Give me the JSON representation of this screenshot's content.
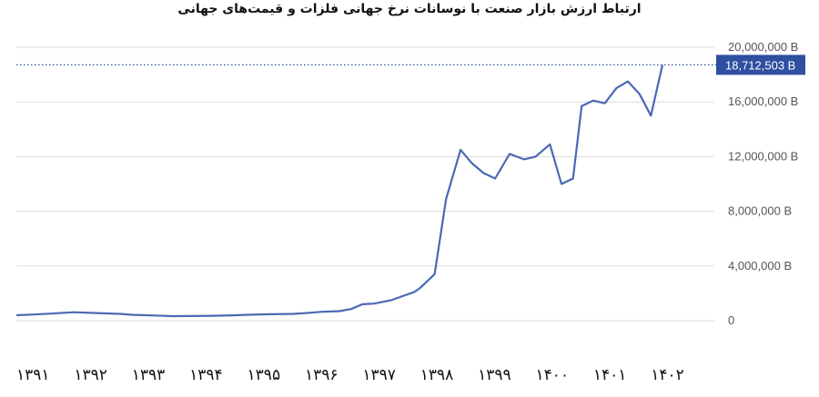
{
  "title": "ارتباط ارزش بازار صنعت با نوسانات نرخ جهانی فلزات و قیمت‌های جهانی",
  "colors": {
    "line": "#4a69b3",
    "grid": "#dddddd",
    "callout": "#2f4fa0",
    "reference": "#2f4fa0"
  },
  "chart_data": {
    "type": "line",
    "title": "ارتباط ارزش بازار صنعت با نوسانات نرخ جهانی فلزات و قیمت‌های جهانی",
    "ylim": [
      0,
      20000000
    ],
    "yticks": [
      0,
      4000000,
      8000000,
      12000000,
      16000000,
      20000000
    ],
    "ytick_labels": [
      "0",
      "4,000,000 B",
      "8,000,000 B",
      "12,000,000 B",
      "16,000,000 B",
      "20,000,000 B"
    ],
    "xlim": [
      1391,
      1403.1
    ],
    "xticks": [
      1391,
      1392,
      1393,
      1394,
      1395,
      1396,
      1397,
      1398,
      1399,
      1400,
      1401,
      1402
    ],
    "xtick_labels": [
      "۱۳۹۱",
      "۱۳۹۲",
      "۱۳۹۳",
      "۱۳۹۴",
      "۱۳۹۵",
      "۱۳۹۶",
      "۱۳۹۷",
      "۱۳۹۸",
      "۱۳۹۹",
      "۱۴۰۰",
      "۱۴۰۱",
      "۱۴۰۲"
    ],
    "last_value": 18712503,
    "last_value_label": "18,712,503 B",
    "grid": true,
    "series": [
      {
        "x": [
          1391,
          1391.3,
          1391.6,
          1392,
          1392.4,
          1392.8,
          1393,
          1393.4,
          1393.7,
          1394,
          1394.4,
          1394.8,
          1395,
          1395.4,
          1395.8,
          1396,
          1396.3,
          1396.6,
          1396.8,
          1397,
          1397.2,
          1397.5,
          1397.7,
          1397.9,
          1398,
          1398.25,
          1398.45,
          1398.7,
          1398.9,
          1399.1,
          1399.3,
          1399.55,
          1399.8,
          1400,
          1400.25,
          1400.45,
          1400.65,
          1400.8,
          1401,
          1401.2,
          1401.4,
          1401.6,
          1401.8,
          1402,
          1402.2,
          1402.35,
          1402.6,
          1402.8
        ],
        "y": [
          400000,
          450000,
          520000,
          620000,
          560000,
          500000,
          430000,
          380000,
          330000,
          340000,
          360000,
          400000,
          430000,
          470000,
          500000,
          550000,
          650000,
          700000,
          850000,
          1200000,
          1250000,
          1500000,
          1800000,
          2100000,
          2400000,
          3400000,
          8900000,
          12500000,
          11500000,
          10800000,
          10400000,
          12200000,
          11800000,
          12000000,
          12900000,
          10000000,
          10400000,
          15700000,
          16100000,
          15900000,
          17000000,
          17500000,
          16600000,
          15000000,
          18712503,
          18712503,
          18712503,
          18712503
        ]
      }
    ]
  }
}
